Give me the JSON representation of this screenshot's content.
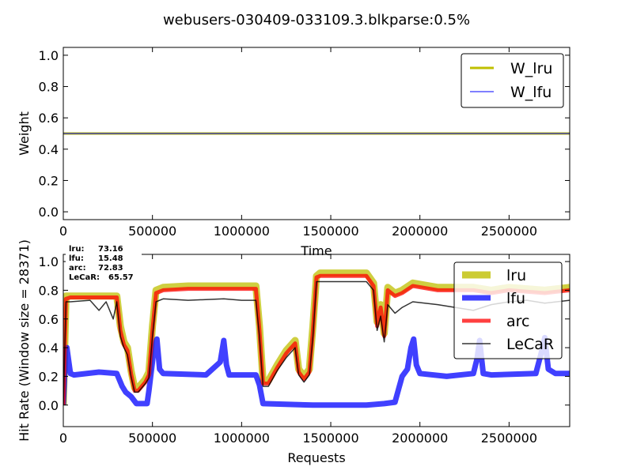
{
  "chart_data": {
    "title": "webusers-030409-033109.3.blkparse:0.5%",
    "colors": {
      "W_lru": "#bfbf00",
      "W_lfu": "#0000ff",
      "lru": "#bfbf00",
      "lfu": "#0000ff",
      "arc": "#ff0000",
      "LeCaR": "#000000"
    },
    "panels": [
      {
        "type": "line",
        "xlabel": "Time",
        "ylabel": "Weight",
        "xlim": [
          0,
          2840000
        ],
        "ylim": [
          -0.05,
          1.05
        ],
        "xticks": [
          0,
          500000,
          1000000,
          1500000,
          2000000,
          2500000
        ],
        "xtick_labels": [
          "0",
          "500000",
          "1000000",
          "1500000",
          "2000000",
          "2500000"
        ],
        "yticks": [
          0.0,
          0.2,
          0.4,
          0.6,
          0.8,
          1.0
        ],
        "ytick_labels": [
          "0.0",
          "0.2",
          "0.4",
          "0.6",
          "0.8",
          "1.0"
        ],
        "legend": {
          "placement": "top-right",
          "entries": [
            "W_lru",
            "W_lfu"
          ]
        },
        "series": [
          {
            "name": "W_lru",
            "x": [
              0,
              2840000
            ],
            "values": [
              0.5,
              0.5
            ]
          },
          {
            "name": "W_lfu",
            "x": [
              0,
              2840000
            ],
            "values": [
              0.5,
              0.5
            ]
          }
        ]
      },
      {
        "type": "line",
        "xlabel": "Requests",
        "ylabel": "Hit Rate (Window size = 28371)",
        "xlim": [
          0,
          2840000
        ],
        "ylim": [
          -0.15,
          1.05
        ],
        "xticks": [
          0,
          500000,
          1000000,
          1500000,
          2000000,
          2500000
        ],
        "xtick_labels": [
          "0",
          "500000",
          "1000000",
          "1500000",
          "2000000",
          "2500000"
        ],
        "yticks": [
          0.0,
          0.2,
          0.4,
          0.6,
          0.8,
          1.0
        ],
        "ytick_labels": [
          "0.0",
          "0.2",
          "0.4",
          "0.6",
          "0.8",
          "1.0"
        ],
        "legend": {
          "placement": "top-right",
          "entries": [
            "lru",
            "lfu",
            "arc",
            "LeCaR"
          ]
        },
        "stats": [
          {
            "label": "lru:",
            "value": "73.16"
          },
          {
            "label": "lfu:",
            "value": "15.48"
          },
          {
            "label": "arc:",
            "value": "72.83"
          },
          {
            "label": "LeCaR:",
            "value": "65.57"
          }
        ],
        "series": [
          {
            "name": "lru",
            "x": [
              0,
              15000,
              40000,
              150000,
              240000,
              300000,
              320000,
              340000,
              360000,
              380000,
              400000,
              420000,
              440000,
              460000,
              480000,
              500000,
              520000,
              560000,
              700000,
              900000,
              1000000,
              1080000,
              1100000,
              1120000,
              1150000,
              1200000,
              1250000,
              1300000,
              1320000,
              1350000,
              1380000,
              1400000,
              1420000,
              1440000,
              1600000,
              1700000,
              1740000,
              1760000,
              1780000,
              1800000,
              1820000,
              1860000,
              1900000,
              1960000,
              2100000,
              2300000,
              2400000,
              2500000,
              2600000,
              2700000,
              2840000
            ],
            "values": [
              0.0,
              0.76,
              0.76,
              0.76,
              0.76,
              0.76,
              0.55,
              0.44,
              0.4,
              0.24,
              0.12,
              0.12,
              0.15,
              0.18,
              0.23,
              0.55,
              0.8,
              0.82,
              0.83,
              0.83,
              0.83,
              0.83,
              0.55,
              0.17,
              0.17,
              0.28,
              0.38,
              0.45,
              0.25,
              0.2,
              0.25,
              0.55,
              0.9,
              0.92,
              0.92,
              0.92,
              0.85,
              0.58,
              0.7,
              0.5,
              0.82,
              0.78,
              0.8,
              0.85,
              0.82,
              0.82,
              0.8,
              0.82,
              0.81,
              0.8,
              0.82
            ]
          },
          {
            "name": "lfu",
            "x": [
              0,
              10000,
              20000,
              40000,
              60000,
              200000,
              300000,
              330000,
              350000,
              380000,
              410000,
              470000,
              480000,
              490000,
              510000,
              525000,
              540000,
              560000,
              800000,
              880000,
              900000,
              915000,
              930000,
              1080000,
              1100000,
              1120000,
              1400000,
              1700000,
              1800000,
              1860000,
              1900000,
              1930000,
              1950000,
              1965000,
              1980000,
              2000000,
              2150000,
              2300000,
              2320000,
              2335000,
              2355000,
              2400000,
              2650000,
              2680000,
              2700000,
              2720000,
              2760000,
              2840000
            ],
            "values": [
              0.0,
              0.3,
              0.4,
              0.22,
              0.21,
              0.23,
              0.22,
              0.13,
              0.09,
              0.06,
              0.01,
              0.01,
              0.1,
              0.2,
              0.4,
              0.46,
              0.25,
              0.22,
              0.21,
              0.3,
              0.45,
              0.28,
              0.21,
              0.21,
              0.14,
              0.01,
              0.0,
              0.0,
              0.01,
              0.02,
              0.2,
              0.25,
              0.4,
              0.46,
              0.28,
              0.22,
              0.2,
              0.22,
              0.32,
              0.45,
              0.22,
              0.21,
              0.22,
              0.36,
              0.47,
              0.25,
              0.22,
              0.22
            ]
          },
          {
            "name": "arc",
            "x": [
              0,
              15000,
              40000,
              150000,
              240000,
              300000,
              320000,
              340000,
              360000,
              380000,
              400000,
              420000,
              440000,
              460000,
              480000,
              500000,
              520000,
              560000,
              700000,
              900000,
              1000000,
              1080000,
              1100000,
              1120000,
              1150000,
              1200000,
              1250000,
              1300000,
              1320000,
              1350000,
              1380000,
              1400000,
              1420000,
              1440000,
              1600000,
              1700000,
              1740000,
              1760000,
              1780000,
              1800000,
              1820000,
              1860000,
              1900000,
              1960000,
              2100000,
              2300000,
              2400000,
              2500000,
              2600000,
              2700000,
              2840000
            ],
            "values": [
              0.0,
              0.74,
              0.75,
              0.75,
              0.75,
              0.75,
              0.52,
              0.42,
              0.38,
              0.22,
              0.1,
              0.1,
              0.13,
              0.16,
              0.21,
              0.52,
              0.78,
              0.8,
              0.81,
              0.81,
              0.81,
              0.81,
              0.52,
              0.15,
              0.15,
              0.26,
              0.36,
              0.43,
              0.23,
              0.18,
              0.23,
              0.52,
              0.89,
              0.9,
              0.9,
              0.9,
              0.83,
              0.55,
              0.68,
              0.48,
              0.8,
              0.76,
              0.78,
              0.83,
              0.8,
              0.8,
              0.78,
              0.8,
              0.79,
              0.78,
              0.8
            ]
          },
          {
            "name": "LeCaR",
            "x": [
              0,
              15000,
              40000,
              150000,
              200000,
              240000,
              280000,
              300000,
              320000,
              340000,
              360000,
              380000,
              400000,
              420000,
              440000,
              460000,
              480000,
              500000,
              520000,
              560000,
              700000,
              900000,
              1000000,
              1080000,
              1100000,
              1120000,
              1150000,
              1200000,
              1250000,
              1300000,
              1320000,
              1350000,
              1380000,
              1400000,
              1420000,
              1440000,
              1600000,
              1700000,
              1740000,
              1760000,
              1780000,
              1800000,
              1820000,
              1860000,
              1900000,
              1960000,
              2100000,
              2300000,
              2400000,
              2500000,
              2600000,
              2700000,
              2840000
            ],
            "values": [
              0.0,
              0.72,
              0.72,
              0.73,
              0.66,
              0.72,
              0.6,
              0.72,
              0.48,
              0.4,
              0.35,
              0.2,
              0.09,
              0.09,
              0.12,
              0.15,
              0.19,
              0.48,
              0.72,
              0.74,
              0.73,
              0.74,
              0.73,
              0.73,
              0.48,
              0.13,
              0.13,
              0.24,
              0.33,
              0.4,
              0.21,
              0.16,
              0.21,
              0.48,
              0.86,
              0.86,
              0.86,
              0.86,
              0.8,
              0.52,
              0.62,
              0.44,
              0.7,
              0.64,
              0.68,
              0.72,
              0.7,
              0.66,
              0.7,
              0.72,
              0.73,
              0.71,
              0.73
            ]
          }
        ]
      }
    ]
  }
}
